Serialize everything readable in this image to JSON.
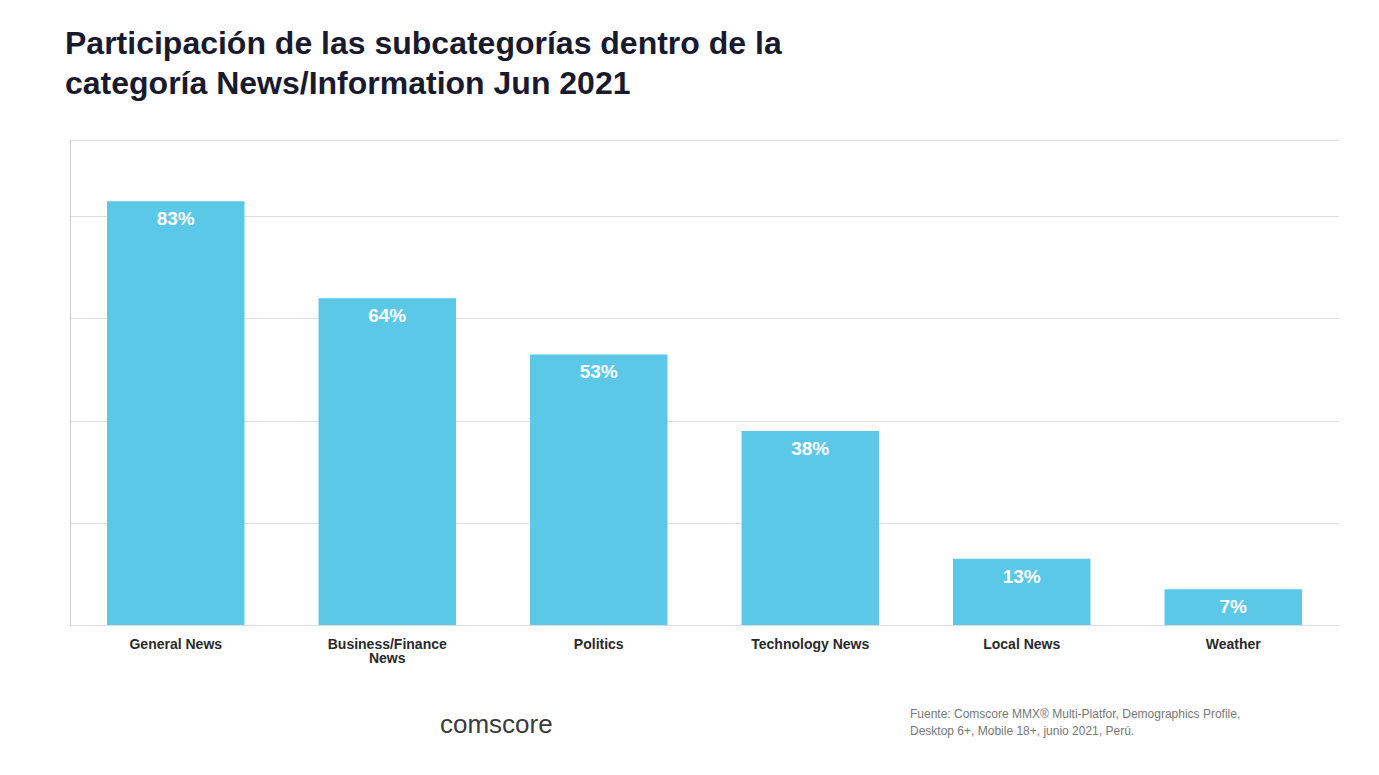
{
  "chart_data": {
    "type": "bar",
    "title": "Participación de las subcategorías dentro de la\ncategoría News/Information Jun 2021",
    "categories": [
      "General News",
      "Business/Finance\nNews",
      "Politics",
      "Technology News",
      "Local News",
      "Weather"
    ],
    "values": [
      83,
      64,
      53,
      38,
      13,
      7
    ],
    "value_labels": [
      "83%",
      "64%",
      "53%",
      "38%",
      "13%",
      "7%"
    ],
    "color": "#5BC8E8",
    "ylim": [
      0,
      95
    ],
    "yticks": [
      0,
      20,
      40,
      60,
      80
    ],
    "grid": true,
    "data_labels": true,
    "tick_labels": "x",
    "annotations": [
      "comscore",
      "Fuente: Comscore MMX® Multi-Platfor, Demographics Profile,\nDesktop 6+, Mobile 18+, junio 2021, Perú."
    ]
  }
}
